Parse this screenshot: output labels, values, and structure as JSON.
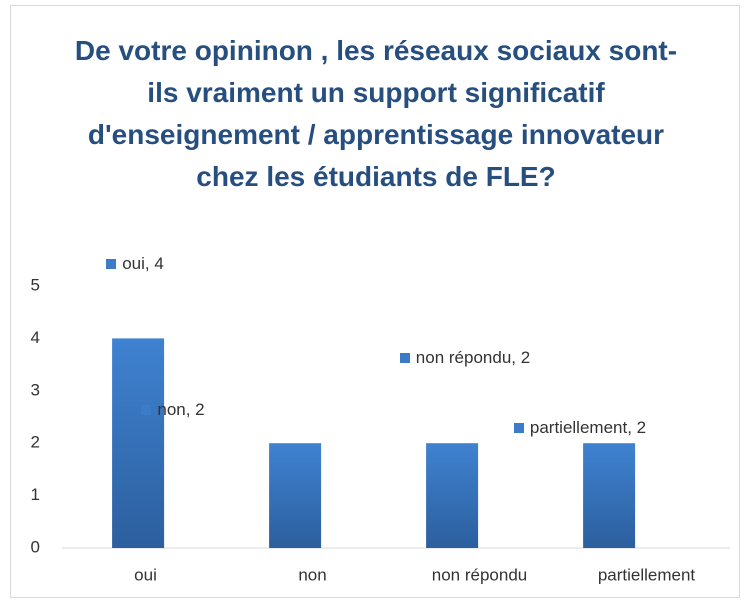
{
  "chart_data": {
    "type": "bar",
    "title": "De votre opininon , les réseaux sociaux sont-ils vraiment un support significatif d'enseignement / apprentissage innovateur chez les étudiants de FLE?",
    "categories": [
      "oui",
      "non",
      "non répondu",
      "partiellement"
    ],
    "values": [
      4,
      2,
      2,
      2
    ],
    "value_labels": [
      "oui, 4",
      "non, 2",
      "non répondu, 2",
      "partiellement, 2"
    ],
    "color": "#3b7bc8",
    "ylim": [
      0,
      5
    ],
    "yticks": [
      0,
      1,
      2,
      3,
      4,
      5
    ],
    "grid": false
  }
}
